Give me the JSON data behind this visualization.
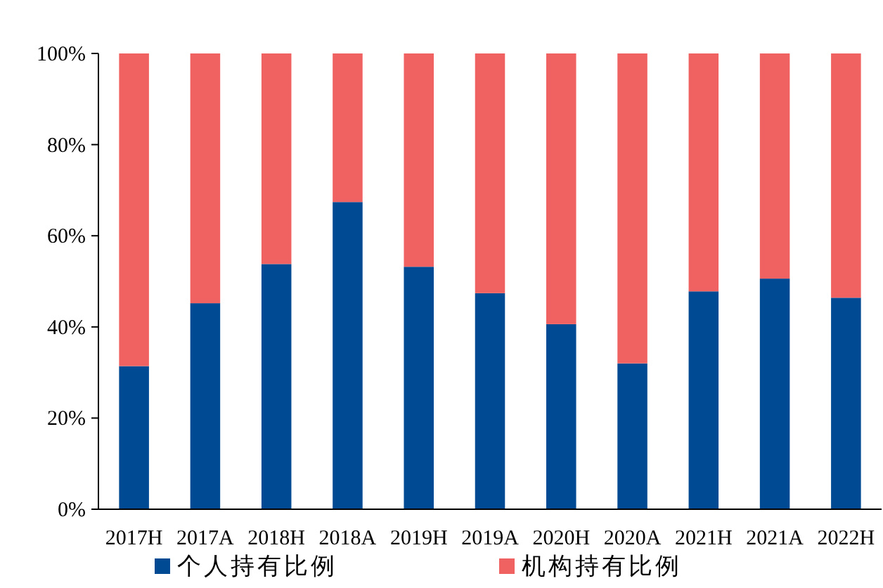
{
  "chart_data": {
    "type": "bar",
    "stacked": true,
    "categories": [
      "2017H",
      "2017A",
      "2018H",
      "2018A",
      "2019H",
      "2019A",
      "2020H",
      "2020A",
      "2021H",
      "2021A",
      "2022H"
    ],
    "series": [
      {
        "name": "个人持有比例",
        "color": "#004a93",
        "values": [
          31.4,
          45.2,
          53.8,
          67.4,
          53.2,
          47.4,
          40.6,
          32.0,
          47.8,
          50.6,
          46.4
        ]
      },
      {
        "name": "机构持有比例",
        "color": "#f06262",
        "values": [
          68.6,
          54.8,
          46.2,
          32.6,
          46.8,
          52.6,
          59.4,
          68.0,
          52.2,
          49.4,
          53.6
        ]
      }
    ],
    "ylim": [
      0,
      100
    ],
    "yticks": [
      {
        "value": 0,
        "label": "0%"
      },
      {
        "value": 20,
        "label": "20%"
      },
      {
        "value": 40,
        "label": "40%"
      },
      {
        "value": 60,
        "label": "60%"
      },
      {
        "value": 80,
        "label": "80%"
      },
      {
        "value": 100,
        "label": "100%"
      }
    ],
    "grid": false,
    "legend": "bottom"
  }
}
